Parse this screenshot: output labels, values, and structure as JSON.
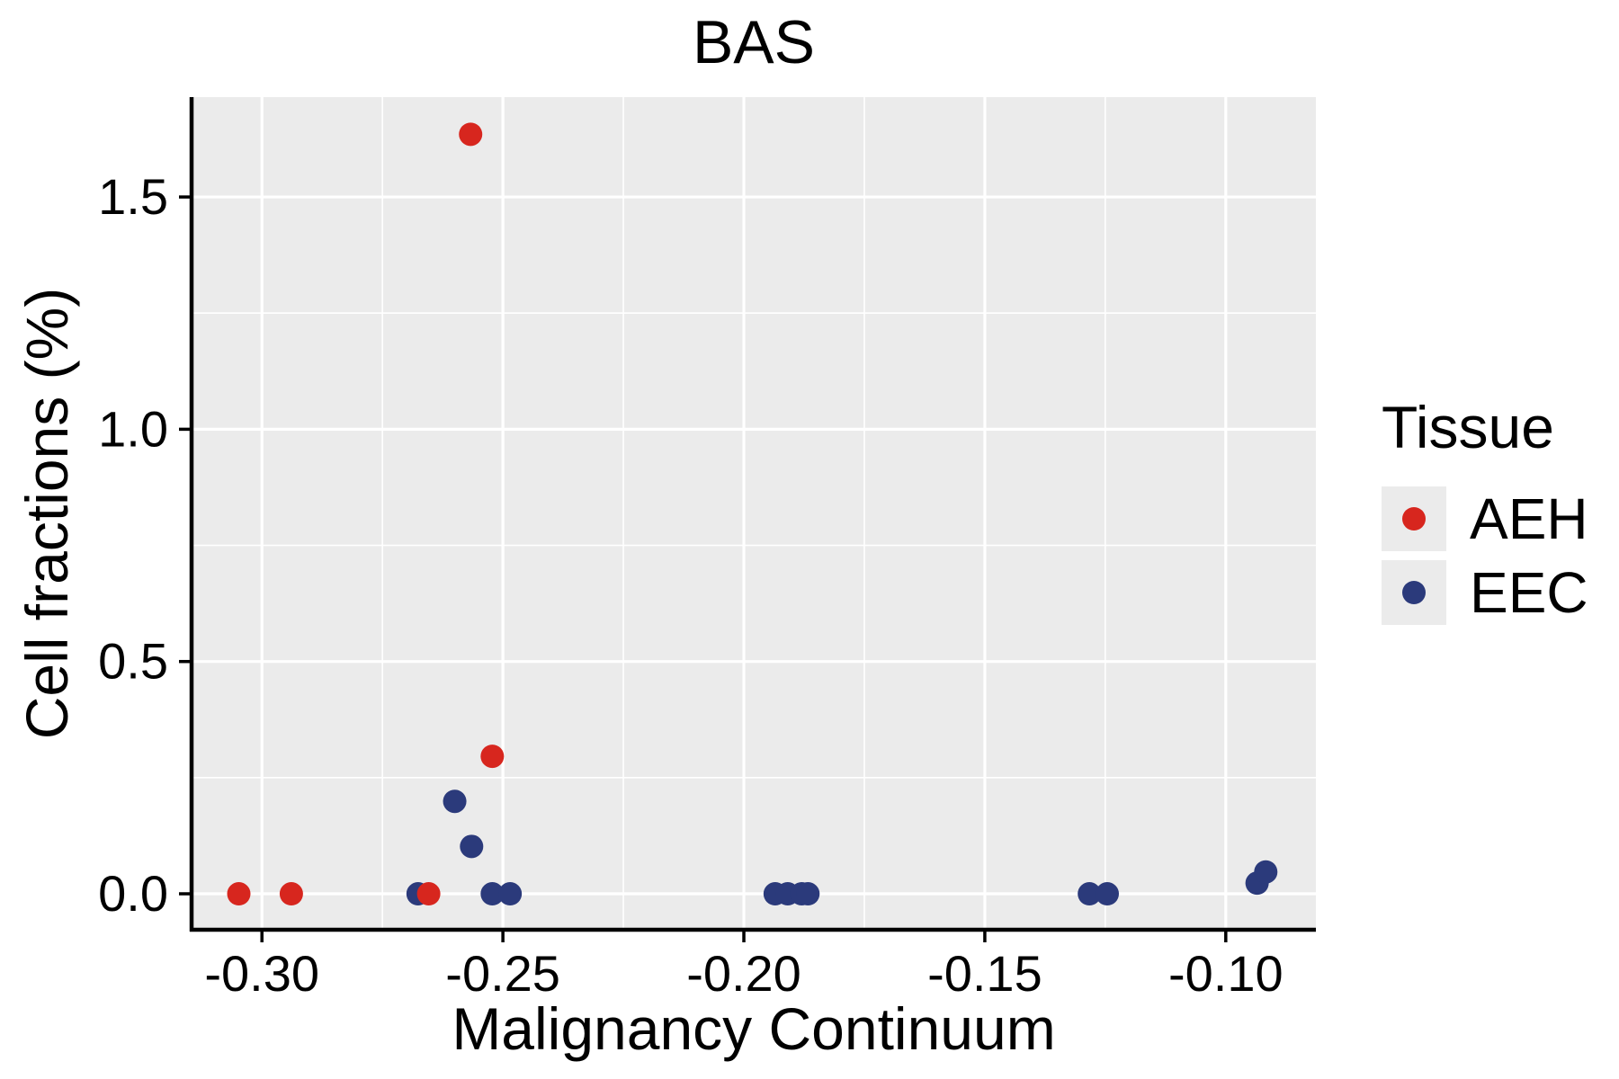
{
  "chart_data": {
    "type": "scatter",
    "title": "BAS",
    "xlabel": "Malignancy Continuum",
    "ylabel": "Cell fractions (%)",
    "xlim": [
      -0.3146,
      -0.0813
    ],
    "ylim": [
      -0.0774,
      1.715
    ],
    "x_ticks": [
      -0.3,
      -0.25,
      -0.2,
      -0.15,
      -0.1
    ],
    "x_tick_labels": [
      "-0.30",
      "-0.25",
      "-0.20",
      "-0.15",
      "-0.10"
    ],
    "y_ticks": [
      0.0,
      0.5,
      1.0,
      1.5
    ],
    "y_tick_labels": [
      "0.0",
      "0.5",
      "1.0",
      "1.5"
    ],
    "x_minor_ticks": [
      -0.275,
      -0.225,
      -0.175,
      -0.125
    ],
    "y_minor_ticks": [
      0.25,
      0.75,
      1.25
    ],
    "grid": true,
    "panel_bg": "#EBEBEB",
    "grid_color": "#FFFFFF",
    "axis_color": "#000000",
    "legend": {
      "title": "Tissue",
      "position": "right"
    },
    "series": [
      {
        "name": "AEH",
        "color": "#D7261E",
        "points": [
          [
            -0.3048,
            0.0
          ],
          [
            -0.2939,
            0.0
          ],
          [
            -0.2654,
            0.0
          ],
          [
            -0.2567,
            1.635
          ],
          [
            -0.2522,
            0.296
          ]
        ]
      },
      {
        "name": "EEC",
        "color": "#2B3A7B",
        "points": [
          [
            -0.2676,
            0.0
          ],
          [
            -0.26,
            0.199
          ],
          [
            -0.2565,
            0.102
          ],
          [
            -0.2522,
            0.0
          ],
          [
            -0.2485,
            0.0
          ],
          [
            -0.1935,
            0.0
          ],
          [
            -0.1909,
            0.0
          ],
          [
            -0.188,
            0.0
          ],
          [
            -0.1867,
            0.0
          ],
          [
            -0.1283,
            0.0
          ],
          [
            -0.1246,
            0.0
          ],
          [
            -0.0935,
            0.023
          ],
          [
            -0.0917,
            0.047
          ]
        ]
      }
    ]
  }
}
